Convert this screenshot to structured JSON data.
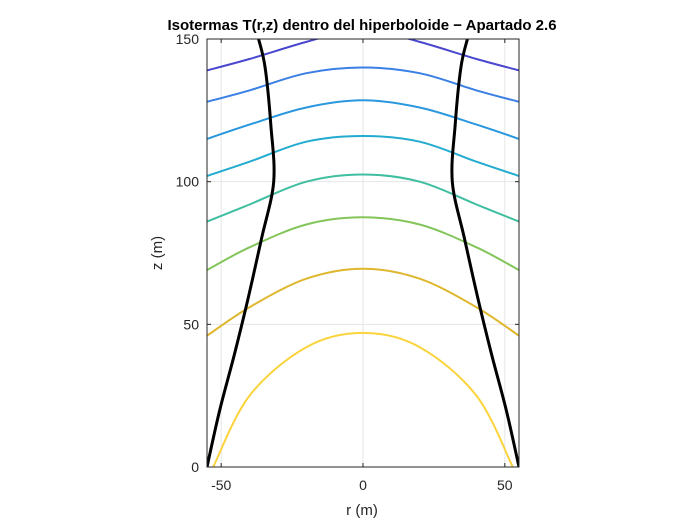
{
  "chart_data": {
    "type": "line",
    "title": "Isotermas T(r,z) dentro del hiperboloide − Apartado 2.6",
    "xlabel": "r (m)",
    "ylabel": "z (m)",
    "xlim": [
      -55,
      55
    ],
    "ylim": [
      0,
      150
    ],
    "x_ticks": [
      -50,
      0,
      50
    ],
    "x_tick_labels": [
      "-50",
      "0",
      "50"
    ],
    "y_ticks": [
      0,
      50,
      100,
      150
    ],
    "y_tick_labels": [
      "0",
      "50",
      "100",
      "150"
    ],
    "grid": true,
    "hyperboloid": {
      "color": "#000000",
      "points": [
        [
          55,
          0
        ],
        [
          50.5,
          20
        ],
        [
          45.2,
          40
        ],
        [
          40.3,
          60
        ],
        [
          35.8,
          80
        ],
        [
          31.5,
          100
        ],
        [
          32.5,
          120
        ],
        [
          34.5,
          140
        ],
        [
          36.8,
          150
        ]
      ]
    },
    "isotherms": [
      {
        "color": "#fbd33c",
        "points": [
          [
            -52.8,
            0
          ],
          [
            -40,
            25
          ],
          [
            -20,
            42
          ],
          [
            0,
            47
          ],
          [
            20,
            42
          ],
          [
            40,
            25
          ],
          [
            52.8,
            0
          ]
        ]
      },
      {
        "color": "#dfb72e",
        "points": [
          [
            -55,
            46
          ],
          [
            -40,
            56
          ],
          [
            -20,
            66
          ],
          [
            0,
            69.5
          ],
          [
            20,
            66
          ],
          [
            40,
            56
          ],
          [
            55,
            46
          ]
        ]
      },
      {
        "color": "#83c55a",
        "points": [
          [
            -55,
            69
          ],
          [
            -40,
            77
          ],
          [
            -20,
            85
          ],
          [
            0,
            87.5
          ],
          [
            20,
            85
          ],
          [
            40,
            77
          ],
          [
            55,
            69
          ]
        ]
      },
      {
        "color": "#3fbea0",
        "points": [
          [
            -55,
            86
          ],
          [
            -40,
            92
          ],
          [
            -20,
            100
          ],
          [
            0,
            102.5
          ],
          [
            20,
            100
          ],
          [
            40,
            92
          ],
          [
            55,
            86
          ]
        ]
      },
      {
        "color": "#23abd0",
        "points": [
          [
            -55,
            102
          ],
          [
            -40,
            107
          ],
          [
            -20,
            114
          ],
          [
            0,
            116
          ],
          [
            20,
            114
          ],
          [
            40,
            107
          ],
          [
            55,
            102
          ]
        ]
      },
      {
        "color": "#2a98de",
        "points": [
          [
            -55,
            115
          ],
          [
            -40,
            120
          ],
          [
            -20,
            126
          ],
          [
            0,
            128.5
          ],
          [
            20,
            126
          ],
          [
            40,
            120
          ],
          [
            55,
            115
          ]
        ]
      },
      {
        "color": "#3a7fe4",
        "points": [
          [
            -55,
            128
          ],
          [
            -40,
            132
          ],
          [
            -20,
            138
          ],
          [
            0,
            140
          ],
          [
            20,
            138
          ],
          [
            40,
            132
          ],
          [
            55,
            128
          ]
        ]
      },
      {
        "color": "#4a47cf",
        "points": [
          [
            -55,
            139
          ],
          [
            -40,
            143
          ],
          [
            -20,
            149
          ],
          [
            -10,
            151
          ],
          [
            10,
            151
          ],
          [
            20,
            149
          ],
          [
            40,
            143
          ],
          [
            55,
            139
          ]
        ]
      }
    ]
  }
}
